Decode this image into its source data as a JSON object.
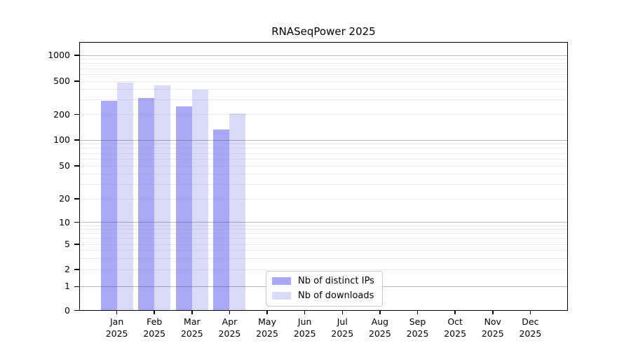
{
  "chart_data": {
    "type": "bar",
    "title": "RNASeqPower 2025",
    "x_months": [
      "Jan",
      "Feb",
      "Mar",
      "Apr",
      "May",
      "Jun",
      "Jul",
      "Aug",
      "Sep",
      "Oct",
      "Nov",
      "Dec"
    ],
    "x_year": "2025",
    "categories": [
      "Jan 2025",
      "Feb 2025",
      "Mar 2025",
      "Apr 2025",
      "May 2025",
      "Jun 2025",
      "Jul 2025",
      "Aug 2025",
      "Sep 2025",
      "Oct 2025",
      "Nov 2025",
      "Dec 2025"
    ],
    "series": [
      {
        "name": "Nb of distinct IPs",
        "color": "#a8a8f7",
        "values": [
          290,
          315,
          248,
          132,
          null,
          null,
          null,
          null,
          null,
          null,
          null,
          null
        ]
      },
      {
        "name": "Nb of downloads",
        "color": "#d9d9f8",
        "values": [
          485,
          445,
          400,
          205,
          null,
          null,
          null,
          null,
          null,
          null,
          null,
          null
        ]
      }
    ],
    "y_ticks": [
      0,
      1,
      2,
      5,
      10,
      20,
      50,
      100,
      200,
      500,
      1000
    ],
    "y_scale": "symlog",
    "ylim": [
      0,
      1400
    ],
    "grid": "on",
    "legend_position": "lower-center"
  }
}
